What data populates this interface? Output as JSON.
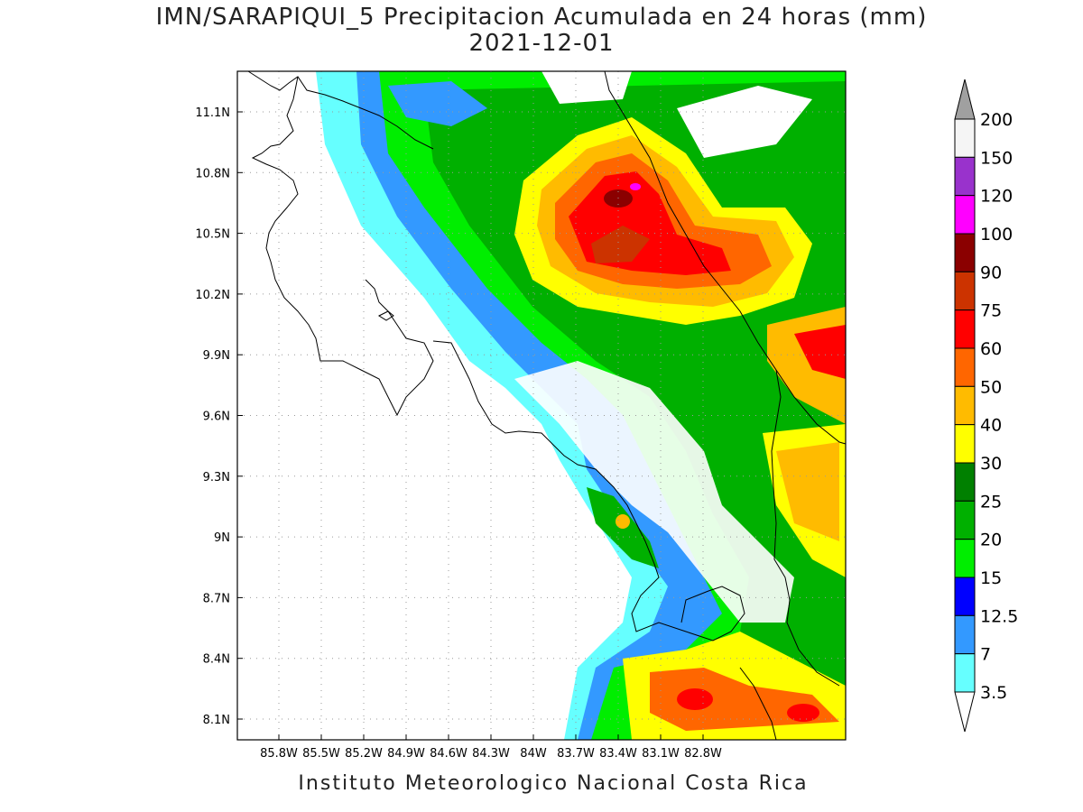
{
  "header": {
    "title_line1": "IMN/SARAPIQUI_5 Precipitacion Acumulada en 24 horas (mm)",
    "title_line2": "2021-12-01"
  },
  "footer": {
    "credit": "Instituto Meteorologico Nacional Costa Rica"
  },
  "map": {
    "lon_ticks": [
      "85.8W",
      "85.5W",
      "85.2W",
      "84.9W",
      "84.6W",
      "84.3W",
      "84W",
      "83.7W",
      "83.4W",
      "83.1W",
      "82.8W"
    ],
    "lat_ticks": [
      "11.1N",
      "10.8N",
      "10.5N",
      "10.2N",
      "9.9N",
      "9.6N",
      "9.3N",
      "9N",
      "8.7N",
      "8.4N",
      "8.1N"
    ],
    "gridlines": true
  },
  "colorbar": {
    "labels": [
      "200",
      "150",
      "120",
      "100",
      "90",
      "75",
      "60",
      "50",
      "40",
      "30",
      "25",
      "20",
      "15",
      "12.5",
      "7",
      "3.5"
    ],
    "colors": [
      "#f5f5f5",
      "#9932cc",
      "#ff00ff",
      "#8b0000",
      "#cc3300",
      "#ff0000",
      "#ff6600",
      "#ffbb00",
      "#ffff00",
      "#008000",
      "#00b000",
      "#00ee00",
      "#0000ff",
      "#3399ff",
      "#66ffff"
    ],
    "over_color": "#a0a0a0",
    "under_color": "#ffffff"
  }
}
